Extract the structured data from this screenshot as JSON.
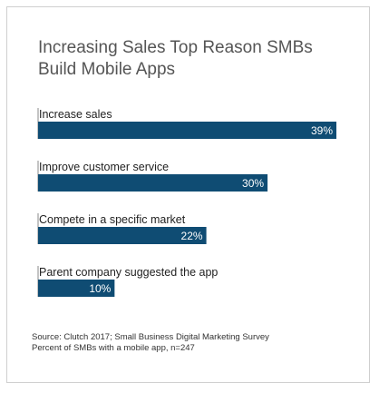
{
  "chart_data": {
    "type": "bar",
    "orientation": "horizontal",
    "title": "Increasing Sales Top Reason SMBs Build Mobile Apps",
    "categories": [
      "Increase sales",
      "Improve customer service",
      "Compete in a specific market",
      "Parent company suggested the app"
    ],
    "values": [
      39,
      30,
      22,
      10
    ],
    "value_labels": [
      "39%",
      "30%",
      "22%",
      "10%"
    ],
    "unit": "%",
    "xlim": [
      0,
      39
    ],
    "grid": false,
    "legend": "none",
    "bar_color": "#0f4c73",
    "label_color": "#ffffff",
    "axis_color": "#888888"
  },
  "footer": {
    "source": "Source: Clutch 2017; Small Business Digital Marketing Survey",
    "note": "Percent of SMBs with a mobile app, n=247"
  }
}
